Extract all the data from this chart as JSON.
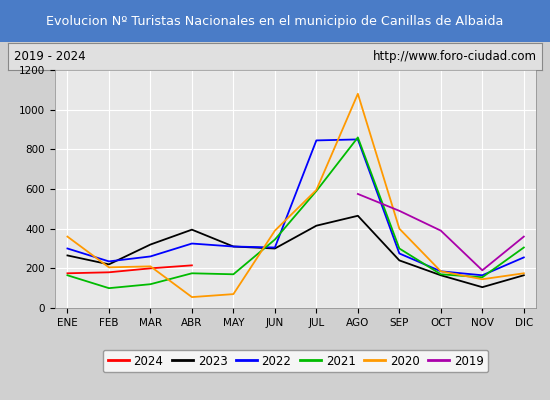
{
  "title": "Evolucion Nº Turistas Nacionales en el municipio de Canillas de Albaida",
  "subtitle_left": "2019 - 2024",
  "subtitle_right": "http://www.foro-ciudad.com",
  "months": [
    "ENE",
    "FEB",
    "MAR",
    "ABR",
    "MAY",
    "JUN",
    "JUL",
    "AGO",
    "SEP",
    "OCT",
    "NOV",
    "DIC"
  ],
  "ylim": [
    0,
    1200
  ],
  "yticks": [
    0,
    200,
    400,
    600,
    800,
    1000,
    1200
  ],
  "series": {
    "2024": {
      "color": "#ff0000",
      "values": [
        175,
        180,
        200,
        215,
        null,
        null,
        null,
        null,
        null,
        null,
        null,
        null
      ]
    },
    "2023": {
      "color": "#000000",
      "values": [
        265,
        220,
        320,
        395,
        310,
        300,
        415,
        465,
        240,
        165,
        105,
        165
      ]
    },
    "2022": {
      "color": "#0000ff",
      "values": [
        300,
        235,
        260,
        325,
        310,
        305,
        845,
        850,
        275,
        185,
        165,
        255
      ]
    },
    "2021": {
      "color": "#00bb00",
      "values": [
        165,
        100,
        120,
        175,
        170,
        345,
        590,
        860,
        300,
        170,
        155,
        305
      ]
    },
    "2020": {
      "color": "#ff9900",
      "values": [
        360,
        205,
        210,
        55,
        70,
        390,
        595,
        1080,
        400,
        185,
        145,
        175
      ]
    },
    "2019": {
      "color": "#aa00aa",
      "values": [
        null,
        null,
        null,
        null,
        null,
        null,
        null,
        575,
        490,
        390,
        190,
        360
      ]
    }
  },
  "legend_order": [
    "2024",
    "2023",
    "2022",
    "2021",
    "2020",
    "2019"
  ],
  "title_bg_color": "#4a7cc7",
  "title_text_color": "#ffffff",
  "plot_bg_color": "#e8e8e8",
  "grid_color": "#ffffff",
  "subtitle_bg_color": "#e0e0e0",
  "fig_bg_color": "#d0d0d0"
}
